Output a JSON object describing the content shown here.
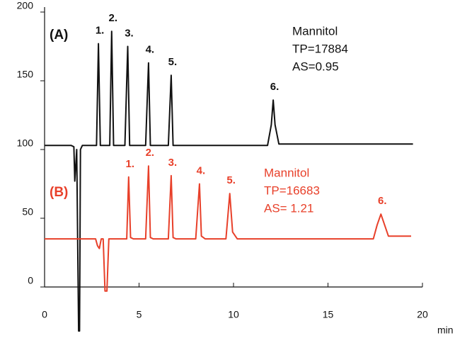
{
  "chart_data": {
    "type": "line",
    "x_label": "min",
    "xlim": [
      0,
      20
    ],
    "xticks": [
      0,
      5,
      10,
      15,
      20
    ],
    "ylim": [
      0,
      200
    ],
    "yticks": [
      0,
      50,
      100,
      150,
      200
    ],
    "series": [
      {
        "name": "(A)",
        "color": "#111111",
        "notes": [
          "Mannitol",
          "TP=17884",
          "AS=0.95"
        ],
        "x": [
          0,
          1.4,
          1.55,
          1.6,
          1.7,
          1.8,
          1.85,
          1.9,
          2.0,
          2.6,
          2.75,
          2.85,
          2.95,
          3.3,
          3.45,
          3.55,
          3.65,
          4.25,
          4.4,
          4.5,
          4.65,
          5.35,
          5.5,
          5.6,
          5.75,
          6.55,
          6.7,
          6.8,
          7.0,
          11.8,
          12.0,
          12.1,
          12.2,
          12.4,
          19.5
        ],
        "values": [
          103,
          103,
          102,
          77,
          100,
          -32,
          -32,
          100,
          103,
          103,
          103,
          177,
          103,
          103,
          103,
          186,
          103,
          103,
          175,
          103,
          103,
          103,
          163,
          103,
          103,
          103,
          154,
          103,
          103,
          103,
          118,
          136,
          118,
          104,
          104
        ],
        "peaks": [
          {
            "label": "1.",
            "x": 2.85,
            "y": 177
          },
          {
            "label": "2.",
            "x": 3.55,
            "y": 186
          },
          {
            "label": "3.",
            "x": 4.4,
            "y": 175
          },
          {
            "label": "4.",
            "x": 5.5,
            "y": 163
          },
          {
            "label": "5.",
            "x": 6.7,
            "y": 154
          },
          {
            "label": "6.",
            "x": 12.1,
            "y": 136
          }
        ]
      },
      {
        "name": "(B)",
        "color": "#e8402a",
        "notes": [
          "Mannitol",
          "TP=16683",
          "AS= 1.21"
        ],
        "x": [
          0,
          2.7,
          2.8,
          2.9,
          3.0,
          3.1,
          3.2,
          3.3,
          3.4,
          4.35,
          4.45,
          4.55,
          4.7,
          5.35,
          5.5,
          5.6,
          5.75,
          6.55,
          6.7,
          6.8,
          6.95,
          8.0,
          8.2,
          8.3,
          8.5,
          9.6,
          9.8,
          9.95,
          10.2,
          17.4,
          17.6,
          17.8,
          18.0,
          18.2,
          19.4
        ],
        "values": [
          35,
          35,
          30,
          28,
          35,
          35,
          -3,
          -3,
          35,
          35,
          80,
          36,
          35,
          35,
          88,
          36,
          35,
          35,
          81,
          36,
          35,
          35,
          75,
          37,
          35,
          35,
          68,
          40,
          35,
          35,
          45,
          53,
          45,
          37,
          37
        ],
        "peaks": [
          {
            "label": "1.",
            "x": 4.45,
            "y": 80
          },
          {
            "label": "2.",
            "x": 5.5,
            "y": 88
          },
          {
            "label": "3.",
            "x": 6.7,
            "y": 81
          },
          {
            "label": "4.",
            "x": 8.2,
            "y": 75
          },
          {
            "label": "5.",
            "x": 9.8,
            "y": 68
          },
          {
            "label": "6.",
            "x": 17.8,
            "y": 53
          }
        ]
      }
    ]
  }
}
